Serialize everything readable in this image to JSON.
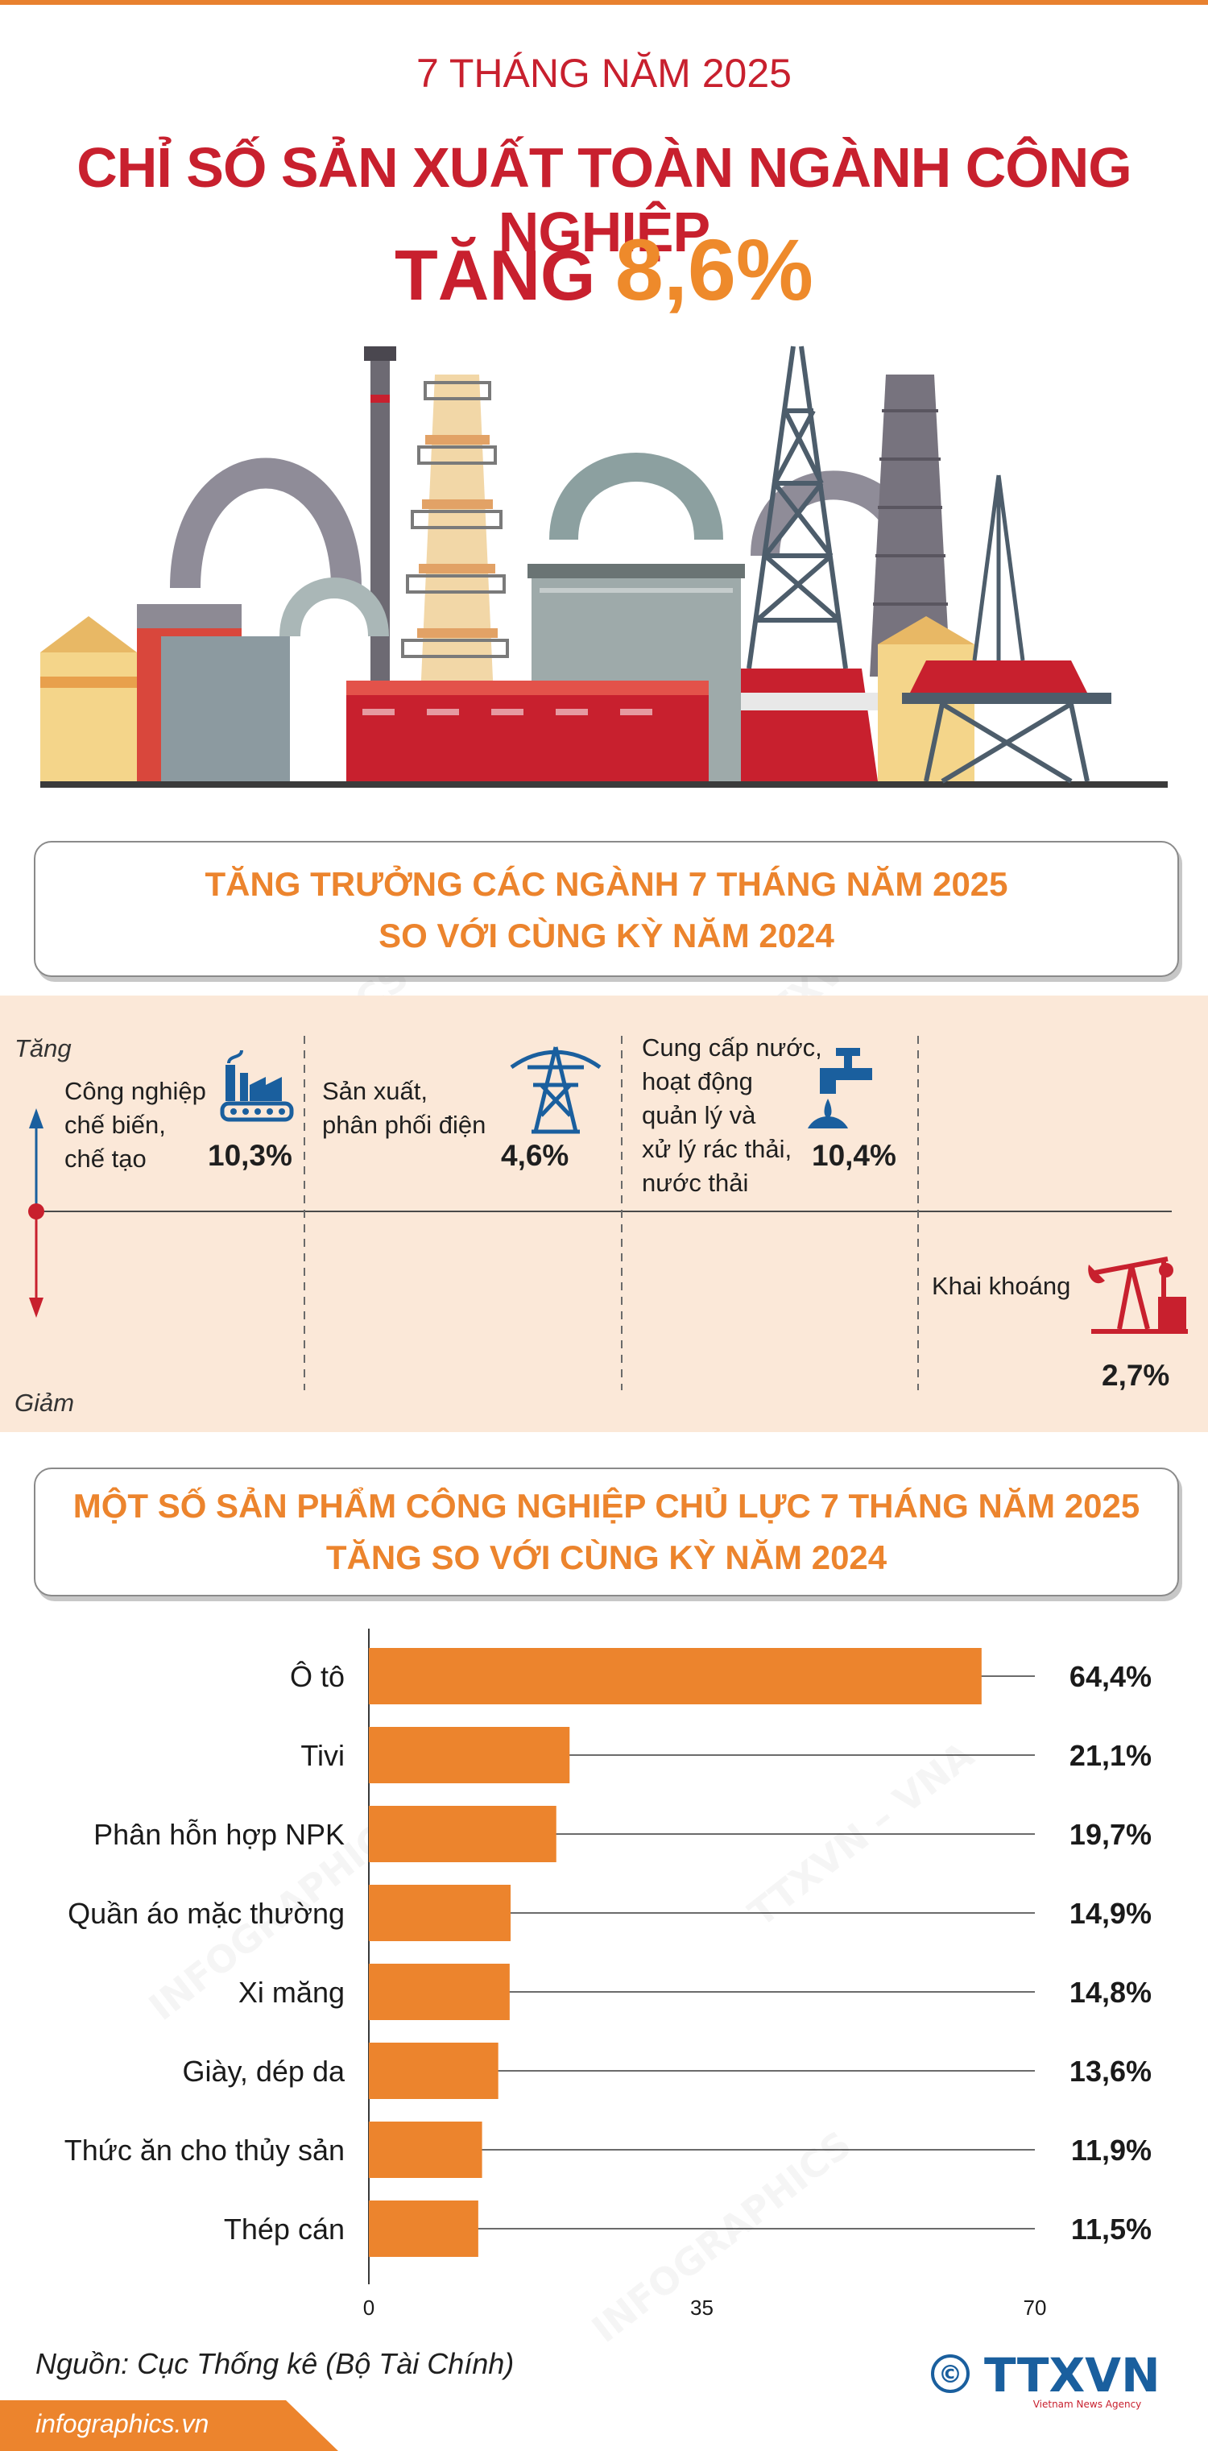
{
  "header": {
    "subtitle": "7 THÁNG NĂM 2025",
    "title": "CHỈ SỐ SẢN XUẤT TOÀN NGÀNH CÔNG NGHIỆP",
    "increase_word": "TĂNG",
    "increase_value": "8,6%"
  },
  "section1": {
    "title_line1": "TĂNG TRƯỞNG CÁC NGÀNH 7 THÁNG NĂM 2025",
    "title_line2": "SO VỚI CÙNG KỲ NĂM 2024",
    "axis_up": "Tăng",
    "axis_down": "Giảm",
    "industries": [
      {
        "lines": [
          "Công nghiệp",
          "chế biến,",
          "chế tạo"
        ],
        "value": "10,3%",
        "direction": "up",
        "icon": "factory-icon"
      },
      {
        "lines": [
          "Sản xuất,",
          "phân phối điện"
        ],
        "value": "4,6%",
        "direction": "up",
        "icon": "power-tower-icon"
      },
      {
        "lines": [
          "Cung cấp nước,",
          "hoạt động",
          "quản lý và",
          "xử lý rác thải,",
          "nước thải"
        ],
        "value": "10,4%",
        "direction": "up",
        "icon": "water-tap-icon"
      },
      {
        "lines": [
          "Khai khoáng"
        ],
        "value": "2,7%",
        "direction": "down",
        "icon": "oil-pump-icon"
      }
    ]
  },
  "section2": {
    "title_line1": "MỘT SỐ SẢN PHẨM CÔNG NGHIỆP CHỦ LỰC 7 THÁNG NĂM 2025",
    "title_line2": "TĂNG SO VỚI CÙNG KỲ NĂM 2024"
  },
  "chart_data": {
    "type": "bar",
    "orientation": "horizontal",
    "categories": [
      "Ô tô",
      "Tivi",
      "Phân hỗn hợp NPK",
      "Quần áo mặc thường",
      "Xi măng",
      "Giày, dép da",
      "Thức ăn cho thủy sản",
      "Thép cán"
    ],
    "values": [
      64.4,
      21.1,
      19.7,
      14.9,
      14.8,
      13.6,
      11.9,
      11.5
    ],
    "value_labels": [
      "64,4%",
      "21,1%",
      "19,7%",
      "14,9%",
      "14,8%",
      "13,6%",
      "11,9%",
      "11,5%"
    ],
    "xlim": [
      0,
      70
    ],
    "xticks": [
      "0",
      "35",
      "70"
    ],
    "xtick_values": [
      0,
      35,
      70
    ],
    "bar_color": "#ec842d"
  },
  "footer": {
    "source": "Nguồn: Cục Thống kê (Bộ Tài Chính)",
    "website": "infographics.vn",
    "logo_text": "TTXVN",
    "logo_subtext": "Vietnam News Agency",
    "copyright_symbol": "©"
  },
  "colors": {
    "red": "#c8202e",
    "orange": "#ec842d",
    "band": "#fbe8d8",
    "blue": "#1a5f9e"
  }
}
